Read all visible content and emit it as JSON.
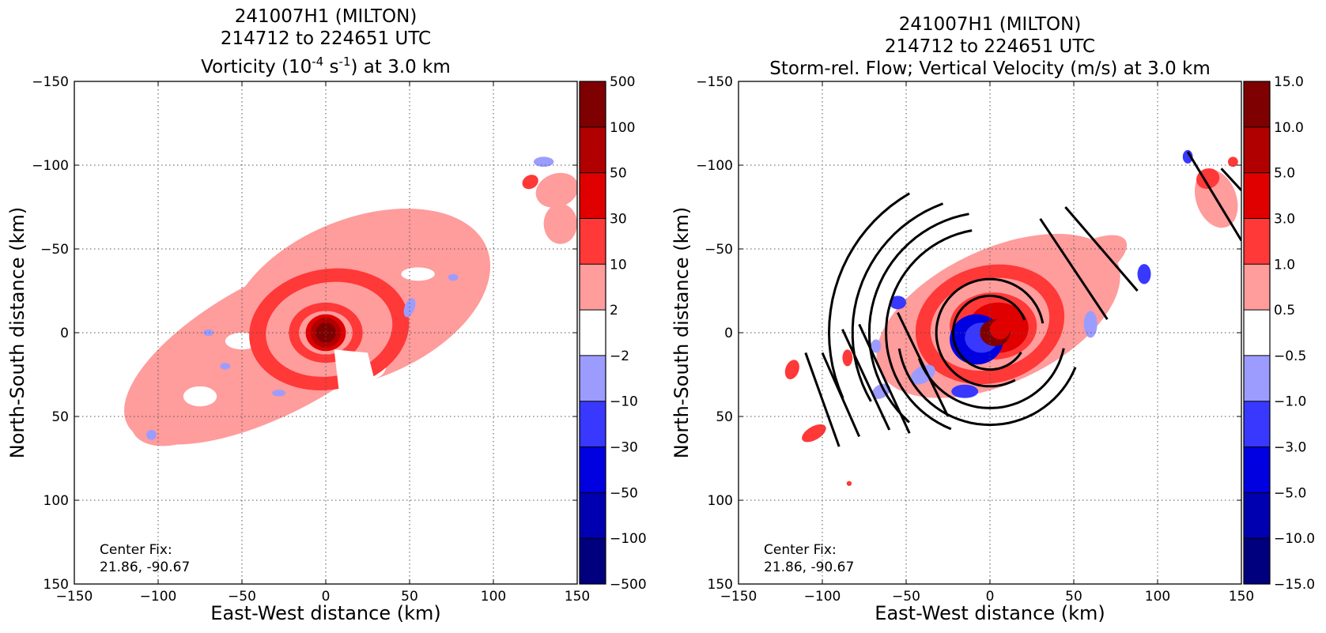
{
  "chart_data": [
    {
      "type": "heatmap",
      "title_lines": [
        "241007H1 (MILTON)",
        "214712 to 224651 UTC"
      ],
      "title_line3": {
        "pre": "Vorticity (10",
        "sup1": "-4",
        "mid": " s",
        "sup2": "-1",
        "post": ") at 3.0 km"
      },
      "xlabel": "East-West distance (km)",
      "ylabel": "North-South distance (km)",
      "xlim": [
        -150,
        150
      ],
      "ylim": [
        -150,
        150
      ],
      "xticks": [
        "−150",
        "−100",
        "−50",
        "0",
        "50",
        "100",
        "150"
      ],
      "yticks": [
        "−150",
        "−100",
        "−50",
        "0",
        "50",
        "100",
        "150"
      ],
      "grid": true,
      "colorbar_ticks": [
        "500",
        "100",
        "50",
        "30",
        "10",
        "2",
        "−2",
        "−10",
        "−30",
        "−50",
        "−100",
        "−500"
      ],
      "annotation_lines": [
        "Center Fix:",
        "21.86, -90.67"
      ]
    },
    {
      "type": "heatmap",
      "title_lines": [
        "241007H1 (MILTON)",
        "214712 to 224651 UTC",
        "Storm-rel. Flow; Vertical Velocity (m/s) at 3.0 km"
      ],
      "xlabel": "East-West distance (km)",
      "ylabel": "North-South distance (km)",
      "xlim": [
        -150,
        150
      ],
      "ylim": [
        -150,
        150
      ],
      "xticks": [
        "−150",
        "−100",
        "−50",
        "0",
        "50",
        "100",
        "150"
      ],
      "yticks": [
        "−150",
        "−100",
        "−50",
        "0",
        "50",
        "100",
        "150"
      ],
      "grid": true,
      "colorbar_ticks": [
        "15.0",
        "10.0",
        "5.0",
        "3.0",
        "1.0",
        "0.5",
        "−0.5",
        "−1.0",
        "−3.0",
        "−5.0",
        "−10.0",
        "−15.0"
      ],
      "annotation_lines": [
        "Center Fix:",
        "21.86, -90.67"
      ]
    }
  ],
  "colors": {
    "levels": [
      "#7f0000",
      "#b00000",
      "#e00000",
      "#ff3838",
      "#ff9c9c",
      "#ffffff",
      "#9c9cff",
      "#3838ff",
      "#0000e0",
      "#0000b0",
      "#00007f"
    ],
    "flow": "#000000"
  }
}
